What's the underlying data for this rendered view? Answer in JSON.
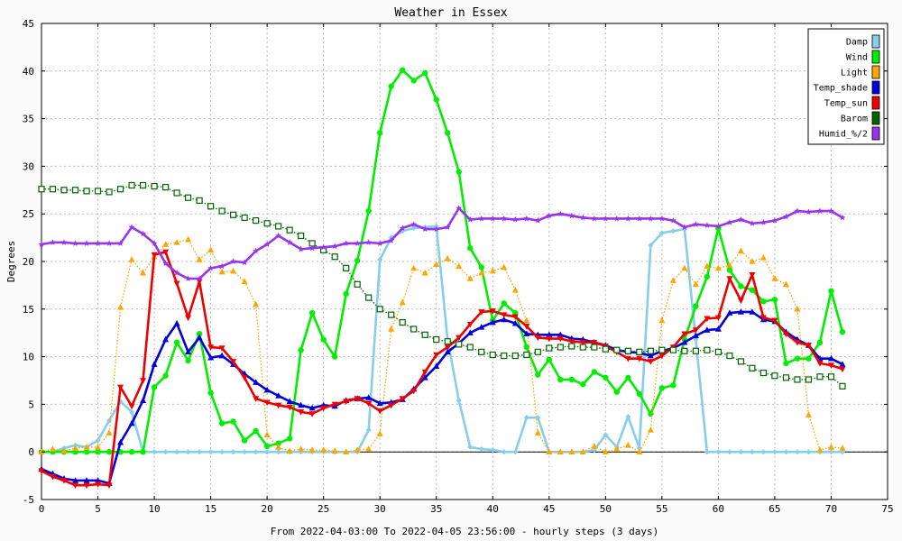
{
  "chart_data": {
    "type": "line",
    "title": "Weather in Essex",
    "xlabel": "From 2022-04-03:00 To 2022-04-05 23:56:00 - hourly steps (3 days)",
    "ylabel": "Degrees",
    "xlim": [
      0,
      75
    ],
    "ylim": [
      -5,
      45
    ],
    "xticks": [
      0,
      5,
      10,
      15,
      20,
      25,
      30,
      35,
      40,
      45,
      50,
      55,
      60,
      65,
      70,
      75
    ],
    "yticks": [
      -5,
      0,
      5,
      10,
      15,
      20,
      25,
      30,
      35,
      40,
      45
    ],
    "grid": true,
    "legend_position": "top-right",
    "series": [
      {
        "name": "Damp",
        "color": "#87ceeb",
        "marker": "diamond",
        "dashed": false,
        "values": [
          0,
          0,
          0.4,
          0.7,
          0.5,
          1.2,
          3.3,
          5.3,
          4.2,
          0,
          0,
          0,
          0,
          0,
          0,
          0,
          0,
          0,
          0,
          0,
          0,
          0,
          0,
          0,
          0,
          0,
          0,
          0,
          0,
          2.3,
          20.2,
          22.5,
          23.2,
          23.5,
          23.6,
          23.7,
          11.8,
          5.4,
          0.5,
          0.3,
          0.2,
          0,
          0,
          3.6,
          3.6,
          0,
          0,
          0,
          0,
          0.2,
          1.8,
          0.5,
          3.7,
          0.4,
          21.7,
          23,
          23.2,
          23.4,
          11.8,
          0,
          0,
          0,
          0,
          0,
          0,
          0,
          0,
          0,
          0,
          0,
          0,
          0
        ]
      },
      {
        "name": "Wind",
        "color": "#00ee00",
        "marker": "circle",
        "dashed": false,
        "values": [
          0,
          0,
          0,
          0,
          0,
          0,
          0,
          0,
          0,
          0,
          6.8,
          8,
          11.5,
          9.6,
          12.4,
          6.2,
          3,
          3.2,
          1.2,
          2.2,
          0.6,
          0.9,
          1.4,
          10.7,
          14.6,
          11.8,
          10,
          16.6,
          20.1,
          25.3,
          33.5,
          38.4,
          40.1,
          39,
          39.8,
          37,
          33.5,
          29.4,
          21.4,
          19.4,
          13.8,
          15.6,
          14.6,
          11,
          8.1,
          9.7,
          7.6,
          7.6,
          7.1,
          8.4,
          7.8,
          6.3,
          7.8,
          6.1,
          4,
          6.7,
          7,
          11.8,
          15.3,
          18.4,
          23.5,
          19.1,
          17.4,
          17,
          15.8,
          16,
          9.3,
          9.8,
          9.8,
          11.5,
          16.9,
          12.6
        ]
      },
      {
        "name": "Light",
        "color": "#ffa500",
        "marker": "triangle",
        "dashed": true,
        "values": [
          0,
          0.3,
          0.1,
          0.4,
          0.5,
          0.5,
          2,
          15.2,
          20.2,
          18.8,
          20.5,
          21.8,
          22,
          22.3,
          20.2,
          21.2,
          18.9,
          19,
          17.9,
          15.5,
          1.8,
          0.5,
          0.1,
          0.3,
          0.2,
          0.2,
          0.1,
          0,
          0.2,
          0.3,
          1.9,
          12.9,
          15.7,
          19.3,
          18.8,
          19.7,
          20.3,
          19.5,
          18.2,
          18.8,
          19,
          19.4,
          17,
          13.8,
          2,
          0,
          0,
          0,
          0,
          0.6,
          0,
          0.3,
          0.7,
          0,
          2.3,
          13.8,
          18,
          19.3,
          17.6,
          19.5,
          19.3,
          19.6,
          21.1,
          20,
          20.4,
          18.2,
          17.6,
          15,
          3.9,
          0.2,
          0.5,
          0.4
        ]
      },
      {
        "name": "Temp_shade",
        "color": "#0000dd",
        "marker": "triangle",
        "dashed": false,
        "values": [
          -1.8,
          -2.3,
          -2.8,
          -3,
          -3,
          -3,
          -3.3,
          1,
          3,
          5.4,
          9.2,
          11.8,
          13.5,
          10.5,
          12,
          9.9,
          10.1,
          9.2,
          8.2,
          7.3,
          6.5,
          5.9,
          5.3,
          4.9,
          4.6,
          4.9,
          4.8,
          5.4,
          5.6,
          5.7,
          5.1,
          5.2,
          5.5,
          6.6,
          7.8,
          9,
          10.5,
          11.4,
          12.5,
          13.1,
          13.6,
          13.9,
          13.5,
          12.4,
          12.3,
          12.3,
          12.3,
          11.9,
          11.8,
          11.5,
          11.2,
          10.7,
          10.5,
          10.4,
          10.1,
          10.6,
          10.9,
          11.5,
          12.2,
          12.8,
          12.9,
          14.6,
          14.7,
          14.7,
          13.9,
          13.7,
          12.6,
          11.8,
          11.2,
          9.8,
          9.8,
          9.2
        ]
      },
      {
        "name": "Temp_sun",
        "color": "#ee0000",
        "marker": "triangle-down",
        "dashed": false,
        "values": [
          -2,
          -2.6,
          -3,
          -3.5,
          -3.5,
          -3.4,
          -3.5,
          6.8,
          4.8,
          7.5,
          20.7,
          21,
          17.7,
          14.1,
          17.9,
          11,
          10.9,
          9.5,
          7.8,
          5.6,
          5.2,
          4.9,
          4.7,
          4.2,
          4,
          4.6,
          5,
          5.3,
          5.6,
          5.1,
          4.3,
          4.9,
          5.6,
          6.4,
          8.4,
          10.2,
          11,
          12,
          13.4,
          14.7,
          14.8,
          14.4,
          14.2,
          13.2,
          12,
          11.9,
          11.9,
          11.6,
          11.5,
          11.5,
          11.1,
          10.5,
          9.8,
          9.8,
          9.5,
          10.1,
          11,
          12.4,
          12.8,
          14,
          14.1,
          18.2,
          15.9,
          18.6,
          14.1,
          13.8,
          12.4,
          11.5,
          11.2,
          9.3,
          9.1,
          8.7
        ]
      },
      {
        "name": "Barom",
        "color": "#006400",
        "marker": "square",
        "dashed": true,
        "values": [
          27.6,
          27.6,
          27.5,
          27.5,
          27.4,
          27.4,
          27.3,
          27.6,
          28,
          28,
          27.9,
          27.8,
          27.2,
          26.7,
          26.4,
          25.8,
          25.3,
          24.9,
          24.6,
          24.3,
          24,
          23.7,
          23.3,
          22.7,
          21.9,
          21.2,
          20.5,
          19.3,
          17.6,
          16.2,
          15,
          14.4,
          13.6,
          12.9,
          12.3,
          11.8,
          11.6,
          11.3,
          11,
          10.5,
          10.2,
          10.1,
          10.1,
          10.2,
          10.5,
          10.9,
          11,
          11.1,
          11,
          11,
          10.8,
          10.7,
          10.6,
          10.5,
          10.6,
          10.7,
          10.7,
          10.6,
          10.6,
          10.7,
          10.5,
          10.1,
          9.5,
          8.8,
          8.3,
          8,
          7.8,
          7.6,
          7.6,
          7.9,
          7.9,
          6.9
        ]
      },
      {
        "name": "Humid_%/2",
        "color": "#9933ee",
        "marker": "star",
        "dashed": false,
        "values": [
          21.8,
          22,
          22,
          21.9,
          21.9,
          21.9,
          21.9,
          21.9,
          23.6,
          22.9,
          21.9,
          19.8,
          18.8,
          18.2,
          18.2,
          19.3,
          19.5,
          20,
          19.9,
          21.1,
          21.8,
          22.7,
          22,
          21.3,
          21.4,
          21.5,
          21.6,
          21.9,
          21.9,
          22,
          21.9,
          22.2,
          23.5,
          23.9,
          23.4,
          23.4,
          23.6,
          25.6,
          24.4,
          24.5,
          24.5,
          24.5,
          24.4,
          24.5,
          24.3,
          24.8,
          25,
          24.8,
          24.6,
          24.5,
          24.5,
          24.5,
          24.5,
          24.5,
          24.5,
          24.5,
          24.3,
          23.6,
          23.9,
          23.8,
          23.7,
          24.1,
          24.4,
          24,
          24.1,
          24.3,
          24.7,
          25.3,
          25.2,
          25.3,
          25.3,
          24.6
        ]
      }
    ]
  }
}
